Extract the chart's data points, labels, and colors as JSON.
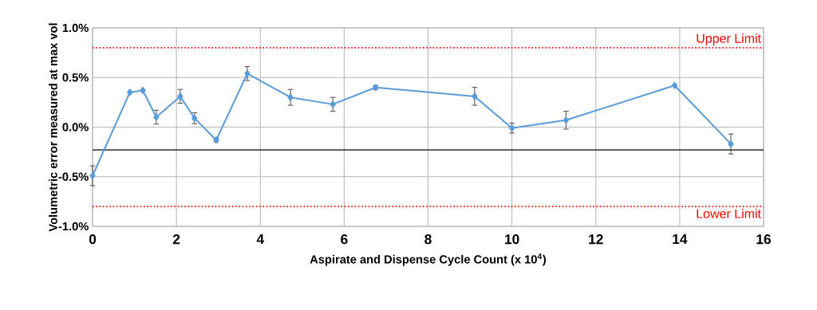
{
  "chart_data": {
    "type": "line",
    "xlabel": "Aspirate and Dispense Cycle Count (x 10$^{4}$)",
    "ylabel": "Volumetric error measured at max vol",
    "x": [
      0,
      0.89,
      1.2,
      1.52,
      2.09,
      2.43,
      2.95,
      3.69,
      4.72,
      5.73,
      6.75,
      9.11,
      10.0,
      11.29,
      13.88,
      15.22
    ],
    "series": [
      {
        "color": "#5b9bd5",
        "values": [
          -0.49,
          0.35,
          0.37,
          0.1,
          0.31,
          0.09,
          -0.13,
          0.54,
          0.3,
          0.23,
          0.4,
          0.31,
          -0.01,
          0.07,
          0.42,
          -0.17
        ],
        "errors": [
          0.1,
          null,
          null,
          0.07,
          0.07,
          0.055,
          0.02,
          0.07,
          0.08,
          0.07,
          0.02,
          0.09,
          0.05,
          0.09,
          null,
          0.1
        ]
      }
    ],
    "xlim": [
      0,
      16
    ],
    "xticks": [
      0,
      2,
      4,
      6,
      8,
      10,
      12,
      14,
      16
    ],
    "ylim": [
      -1.0,
      1.0
    ],
    "yticks": [
      {
        "value": -1.0,
        "label": "-1.0%"
      },
      {
        "value": -0.5,
        "label": "-0.5%"
      },
      {
        "value": 0.0,
        "label": "0.0%"
      },
      {
        "value": 0.5,
        "label": "0.5%"
      },
      {
        "value": 1.0,
        "label": "1.0%"
      }
    ],
    "ref_lines": [
      {
        "axis": "y",
        "value": 0.8,
        "label": "Upper Limit",
        "color": "#ff0000",
        "line_style": "dotted"
      },
      {
        "axis": "y",
        "value": -0.8,
        "label": "Lower Limit",
        "color": "#ff0000",
        "line_style": "dotted"
      },
      {
        "axis": "y",
        "value": -0.23,
        "color": "#000000",
        "line_style": "solid"
      }
    ],
    "grid": true,
    "marker": "diamond",
    "line_style": "solid"
  }
}
